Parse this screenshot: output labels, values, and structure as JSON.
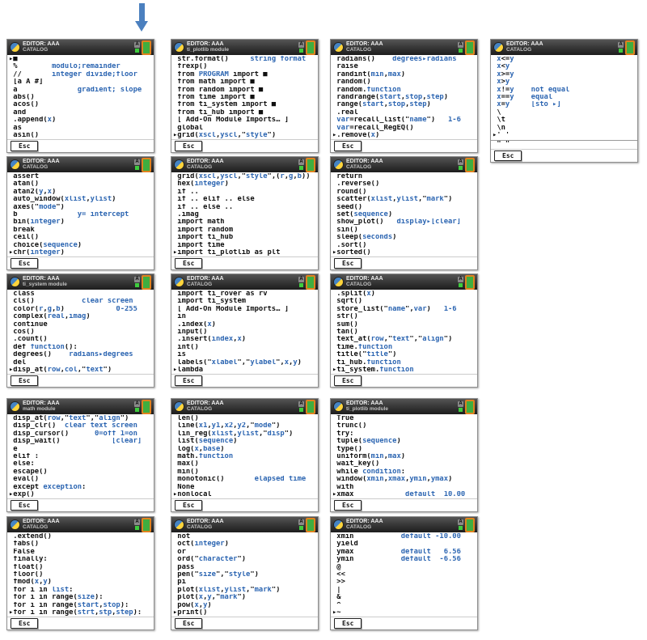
{
  "page": {
    "title": "EDITOR: AAA",
    "esc": "Esc"
  },
  "colors": {
    "keyword_black": "#101010",
    "argument_blue": "#2d66b2",
    "arrow_blue": "#4b80bf",
    "battery_border_orange": "#e0821e",
    "battery_fill_green": "#3fae3f",
    "status_green": "#3ecc3e",
    "header_dark": "#2a2a2a"
  },
  "icons": [
    "python-logo-icon",
    "alpha-status-icon",
    "battery-icon",
    "down-arrow-icon"
  ],
  "screens": [
    {
      "subtitle": "CATALOG",
      "row": 0,
      "col": 0,
      "lines": [
        "▸■",
        " %        `modulo;remainder`",
        " //       `integer divide;floor`",
        " [a A #]",
        " a              `gradient; slope`",
        " abs()",
        " acos()",
        " and",
        " .append(`x`)",
        " as",
        " asin()"
      ]
    },
    {
      "subtitle": "ti_plotlib module",
      "row": 0,
      "col": 1,
      "lines": [
        " str.format()     `string format`",
        " frexp()",
        " from `PROGRAM` import ■",
        " from math import ■",
        " from random import ■",
        " from time import ■",
        " from ti_system import ■",
        " from ti_hub import ■",
        " [ Add-On Module Imports… ]",
        " global",
        "▸grid(`xscl`,`yscl`,\"`style`\")"
      ]
    },
    {
      "subtitle": "CATALOG",
      "row": 0,
      "col": 2,
      "lines": [
        " radians()    `degrees▸radians`",
        " raise",
        " randint(`min`,`max`)",
        " random()",
        " random.`function`",
        " randrange(`start`,`stop`,`step`)",
        " range(`start`,`stop`,`step`)",
        " .real",
        " `var`=recall_list(\"`name`\")   `1-6`",
        " `var`=recall_RegEQ()",
        "▸.remove(`x`)"
      ]
    },
    {
      "subtitle": "CATALOG",
      "row": 0,
      "col": 3,
      "divider_index": 11,
      "lines": [
        " `x`<=`y`",
        " `x`<`y`",
        " `x`>=`y`",
        " `x`>`y`",
        " `x`!=`y`    `not equal`",
        " `x`==`y`    `equal`",
        " `x`=`y`     `[sto ▸]`",
        " \\",
        " \\t",
        " \\n",
        "▸' '",
        " \" \""
      ]
    },
    {
      "subtitle": "CATALOG",
      "row": 1,
      "col": 0,
      "lines": [
        " assert",
        " atan()",
        " atan2(`y`,`x`)",
        " auto_window(`xlist`,`ylist`)",
        " axes(\"`mode`\")",
        " b              `y= intercept`",
        " bin(`integer`)",
        " break",
        " ceil()",
        " choice(`sequence`)",
        "▸chr(`integer`)"
      ]
    },
    {
      "subtitle": "CATALOG",
      "row": 1,
      "col": 1,
      "lines": [
        " grid(`xscl`,`yscl`,\"`style`\",(`r`,`g`,`b`))",
        " hex(`integer`)",
        " if ..",
        " if .. elif .. else",
        " if .. else ..",
        " .imag",
        " import math",
        " import random",
        " import ti_hub",
        " import time",
        "▸import ti_plotlib as plt"
      ]
    },
    {
      "subtitle": "CATALOG",
      "row": 1,
      "col": 2,
      "lines": [
        " return",
        " .reverse()",
        " round()",
        " scatter(`xlist`,`ylist`,\"`mark`\")",
        " seed()",
        " set(`sequence`)",
        " show_plot()   `display▸[clear]`",
        " sin()",
        " sleep(`seconds`)",
        " .sort()",
        "▸sorted()"
      ]
    },
    {
      "subtitle": "ti_system module",
      "row": 2,
      "col": 0,
      "lines": [
        " class",
        " cls()           `clear screen`",
        " color(`r`,`g`,`b`)            `0-255`",
        " complex(`real`,`imag`)",
        " continue",
        " cos()",
        " .count()",
        " def `function`():",
        " degrees()    `radians▸degrees`",
        " del",
        "▸disp_at(`row`,`col`,\"`text`\")"
      ]
    },
    {
      "subtitle": "CATALOG",
      "row": 2,
      "col": 1,
      "lines": [
        " import ti_rover as rv",
        " import ti_system",
        " [ Add-On Module Imports… ]",
        " in",
        " .index(`x`)",
        " input()",
        " .insert(`index`,`x`)",
        " int()",
        " is",
        " labels(\"`xlabel`\",\"`ylabel`\",`x`,`y`)",
        "▸lambda"
      ]
    },
    {
      "subtitle": "CATALOG",
      "row": 2,
      "col": 2,
      "lines": [
        " .split(`x`)",
        " sqrt()",
        " store_list(\"`name`\",`var`)   `1-6`",
        " str()",
        " sum()",
        " tan()",
        " text_at(`row`,\"`text`\",\"`align`\")",
        " time.`function`",
        " title(\"`title`\")",
        " ti_hub.`function`",
        "▸ti_system.`function`"
      ]
    },
    {
      "subtitle": "math module",
      "row": 3,
      "col": 0,
      "lines": [
        " disp_at(`row`,\"`text`\",\"`align`\")",
        " disp_clr()  `clear text screen`",
        " disp_cursor()      `0=off 1=on`",
        " disp_wait()            `[clear]`",
        " e",
        " elif :",
        " else:",
        " escape()",
        " eval()",
        " except `exception`:",
        "▸exp()"
      ]
    },
    {
      "subtitle": "CATALOG",
      "row": 3,
      "col": 1,
      "lines": [
        " len()",
        " line(`x1`,`y1`,`x2`,`y2`,\"`mode`\")",
        " lin_reg(`xlist`,`ylist`,\"`disp`\")",
        " list(`sequence`)",
        " log(`x`,`base`)",
        " math.`function`",
        " max()",
        " min()",
        " monotonic()       `elapsed time`",
        " None",
        "▸nonlocal"
      ]
    },
    {
      "subtitle": "ti_plotlib module",
      "row": 3,
      "col": 2,
      "lines": [
        " True",
        " trunc()",
        " try:",
        " tuple(`sequence`)",
        " type()",
        " uniform(`min`,`max`)",
        " wait_key()",
        " while `condition`:",
        " window(`xmin`,`xmax`,`ymin`,`ymax`)",
        " with",
        "▸xmax            `default  10.00`"
      ]
    },
    {
      "subtitle": "CATALOG",
      "row": 4,
      "col": 0,
      "lines": [
        " .extend()",
        " fabs()",
        " False",
        " finally:",
        " float()",
        " floor()",
        " fmod(`x`,`y`)",
        " for i in `list`:",
        " for i in range(`size`):",
        " for i in range(`start`,`stop`):",
        "▸for i in range(`strt`,`stp`,`step`):"
      ]
    },
    {
      "subtitle": "CATALOG",
      "row": 4,
      "col": 1,
      "lines": [
        " not",
        " oct(`integer`)",
        " or",
        " ord(\"`character`\")",
        " pass",
        " pen(\"`size`\",\"`style`\")",
        " pi",
        " plot(`xlist`,`ylist`,\"`mark`\")",
        " plot(`x`,`y`,\"`mark`\")",
        " pow(`x`,`y`)",
        "▸print()"
      ]
    },
    {
      "subtitle": "CATALOG",
      "row": 4,
      "col": 2,
      "lines": [
        " xmin           `default -10.00`",
        " yield",
        " ymax           `default   6.56`",
        " ymin           `default  -6.56`",
        " @",
        " <<",
        " >>",
        " |",
        " &",
        " ^",
        "▸~"
      ]
    }
  ]
}
